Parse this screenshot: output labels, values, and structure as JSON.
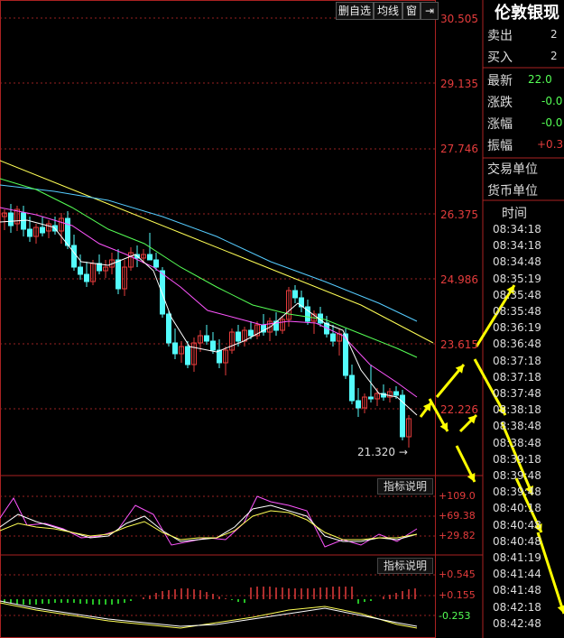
{
  "toolbar": {
    "delete_label": "删自选",
    "ma_label": "均线",
    "window_label": "窗",
    "dock_label": "⇥"
  },
  "price_axis": [
    "30.505",
    "29.135",
    "27.746",
    "26.375",
    "24.986",
    "23.615",
    "22.226"
  ],
  "low_marker": "21.320",
  "right_panel": {
    "title": "伦敦银现",
    "sell_label": "卖出",
    "sell_val": "2",
    "buy_label": "买入",
    "buy_val": "2",
    "latest_label": "最新",
    "latest_val": "22.0",
    "change_label": "涨跌",
    "change_val": "-0.0",
    "pct_label": "涨幅",
    "pct_val": "-0.0",
    "amp_label": "振幅",
    "amp_val": "+0.3",
    "unit_label": "交易单位",
    "currency_label": "货币单位",
    "time_header": "时间",
    "times": [
      "08:34:18",
      "08:34:18",
      "08:34:48",
      "08:35:19",
      "08:35:48",
      "08:35:48",
      "08:36:19",
      "08:36:48",
      "08:37:18",
      "08:37:18",
      "08:37:48",
      "08:38:18",
      "08:38:48",
      "08:38:48",
      "08:39:18",
      "08:39:48",
      "08:39:48",
      "08:40:18",
      "08:40:48",
      "08:40:48",
      "08:41:19",
      "08:41:44",
      "08:41:48",
      "08:42:18",
      "08:42:48"
    ]
  },
  "indicator1": {
    "button": "指标说明",
    "levels": [
      "+109.0",
      "+69.38",
      "+29.82"
    ]
  },
  "indicator2": {
    "button": "指标说明",
    "levels": [
      "+0.545",
      "+0.155",
      "-0.253"
    ]
  },
  "colors": {
    "up": "#e43c3c",
    "down": "#54fcfc",
    "ma1": "#ffffff",
    "ma2": "#ffff55",
    "ma3": "#ff55ff",
    "ma4": "#55ff55",
    "ma5": "#55ccff",
    "arrow": "#ffff00"
  }
}
